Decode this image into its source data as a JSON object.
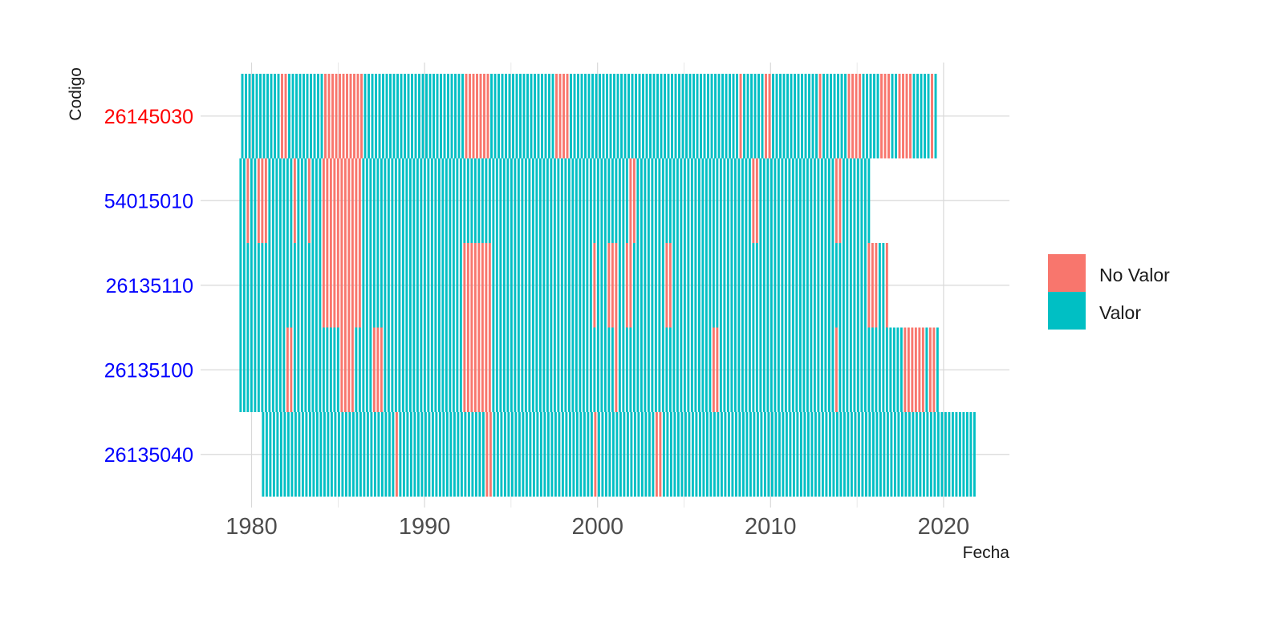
{
  "chart_data": {
    "type": "heatmap",
    "xlabel": "Fecha",
    "ylabel": "Codigo",
    "x_ticks": [
      1980,
      1990,
      2000,
      2010,
      2020
    ],
    "xlim": [
      1979,
      2024
    ],
    "grid": true,
    "legend_placement": "right",
    "colors": {
      "No Valor": "#F8766D",
      "Valor": "#00BFC4",
      "grid": "#d9d9d9",
      "label_highlight": "#ff0000",
      "label_default": "#0000ff"
    },
    "legend": [
      {
        "label": "No Valor",
        "color": "#F8766D"
      },
      {
        "label": "Valor",
        "color": "#00BFC4"
      }
    ],
    "rows": [
      {
        "code": "26145030",
        "highlight": true,
        "start": 1979.4,
        "end": 2019.6,
        "no_valor": [
          [
            1981.6,
            1982.0
          ],
          [
            1984.1,
            1986.3
          ],
          [
            1992.2,
            1993.8
          ],
          [
            1997.5,
            1998.2
          ],
          [
            2008.1,
            2008.4
          ],
          [
            2009.6,
            2009.9
          ],
          [
            2012.6,
            2012.9
          ],
          [
            2014.3,
            2015.2
          ],
          [
            2016.2,
            2016.8
          ],
          [
            2017.2,
            2018.2
          ],
          [
            2019.1,
            2019.4
          ]
        ]
      },
      {
        "code": "54015010",
        "highlight": false,
        "start": 1979.3,
        "end": 2015.8,
        "no_valor": [
          [
            1979.6,
            1979.9
          ],
          [
            1980.3,
            1980.8
          ],
          [
            1982.3,
            1982.6
          ],
          [
            1983.1,
            1983.4
          ],
          [
            1984.1,
            1986.2
          ],
          [
            2001.8,
            2002.1
          ],
          [
            2008.8,
            2009.2
          ],
          [
            2013.6,
            2014.1
          ]
        ]
      },
      {
        "code": "26135110",
        "highlight": false,
        "start": 1979.3,
        "end": 2016.7,
        "no_valor": [
          [
            1984.1,
            1986.3
          ],
          [
            1992.2,
            1993.8
          ],
          [
            1999.6,
            1999.9
          ],
          [
            2000.4,
            2001.1
          ],
          [
            2001.6,
            2002.0
          ],
          [
            2003.8,
            2004.2
          ],
          [
            2015.6,
            2016.1
          ],
          [
            2016.5,
            2016.8
          ]
        ]
      },
      {
        "code": "26135100",
        "highlight": false,
        "start": 1979.3,
        "end": 2019.6,
        "no_valor": [
          [
            1982.0,
            1982.3
          ],
          [
            1985.1,
            1985.8
          ],
          [
            1986.9,
            1987.6
          ],
          [
            1992.2,
            1993.8
          ],
          [
            2000.8,
            2001.2
          ],
          [
            2006.6,
            2006.9
          ],
          [
            2013.6,
            2013.9
          ],
          [
            2017.6,
            2018.8
          ],
          [
            2019.0,
            2019.4
          ]
        ]
      },
      {
        "code": "26135040",
        "highlight": false,
        "start": 1980.6,
        "end": 2021.8,
        "no_valor": [
          [
            1988.2,
            1988.5
          ],
          [
            1993.5,
            1993.8
          ],
          [
            1999.6,
            1999.9
          ],
          [
            2003.3,
            2003.6
          ]
        ]
      }
    ]
  }
}
